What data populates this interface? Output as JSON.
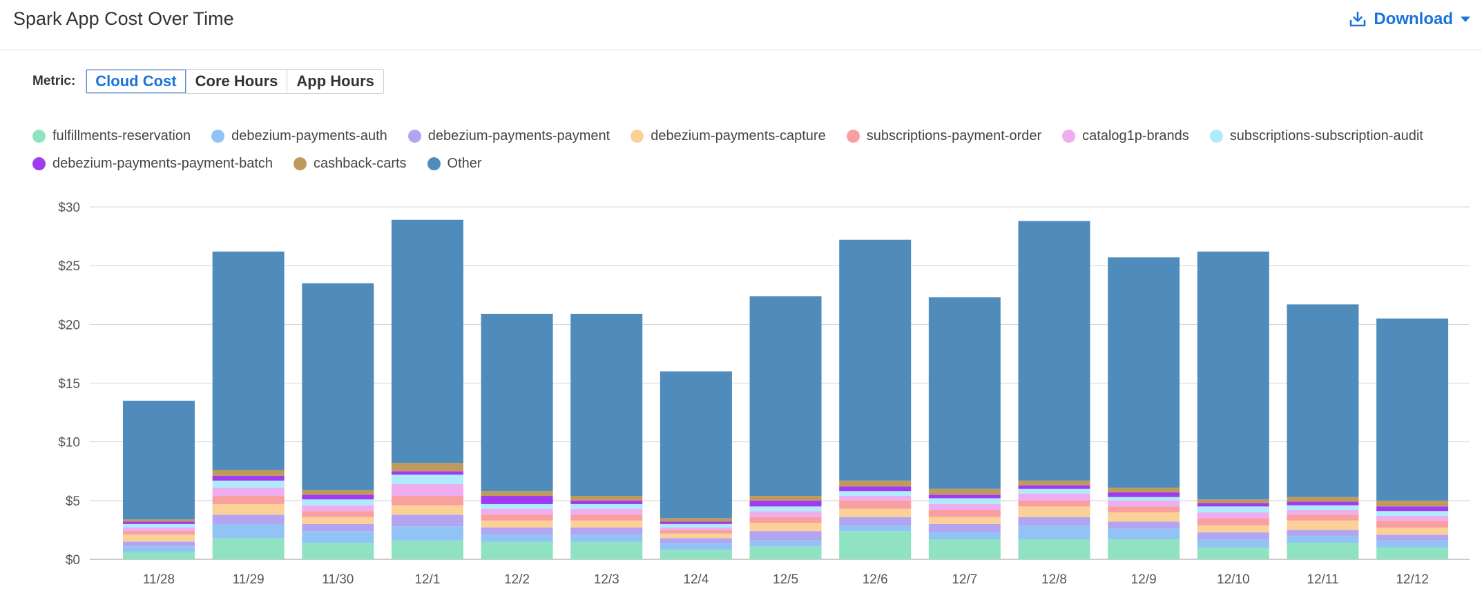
{
  "header": {
    "title": "Spark App Cost Over Time",
    "download_label": "Download"
  },
  "metric": {
    "label": "Metric:",
    "options": [
      "Cloud Cost",
      "Core Hours",
      "App Hours"
    ],
    "selected": "Cloud Cost"
  },
  "icons": {
    "download": "download-icon",
    "dropdown": "caret-down-icon"
  },
  "colors": {
    "accent": "#1a73d9"
  },
  "chart_data": {
    "type": "bar",
    "stacked": true,
    "title": "",
    "xlabel": "",
    "ylabel": "",
    "ylim": [
      0,
      30
    ],
    "y_ticks": [
      "$0",
      "$5",
      "$10",
      "$15",
      "$20",
      "$25",
      "$30"
    ],
    "grid": true,
    "legend_position": "top",
    "categories": [
      "11/28",
      "11/29",
      "11/30",
      "12/1",
      "12/2",
      "12/3",
      "12/4",
      "12/5",
      "12/6",
      "12/7",
      "12/8",
      "12/9",
      "12/10",
      "12/11",
      "12/12"
    ],
    "series": [
      {
        "name": "fulfillments-reservation",
        "color": "#8fe3c2",
        "values": [
          0.6,
          1.8,
          1.4,
          1.6,
          1.5,
          1.5,
          0.8,
          1.1,
          2.4,
          1.7,
          1.7,
          1.7,
          1.0,
          1.4,
          1.0
        ]
      },
      {
        "name": "debezium-payments-auth",
        "color": "#91c4f5",
        "values": [
          0.5,
          1.2,
          1.0,
          1.2,
          0.6,
          0.6,
          0.6,
          0.5,
          0.5,
          0.6,
          1.2,
          0.9,
          0.7,
          0.6,
          0.6
        ]
      },
      {
        "name": "debezium-payments-payment",
        "color": "#b3a4f2",
        "values": [
          0.4,
          0.8,
          0.6,
          1.0,
          0.6,
          0.6,
          0.4,
          0.8,
          0.7,
          0.7,
          0.7,
          0.6,
          0.6,
          0.5,
          0.5
        ]
      },
      {
        "name": "debezium-payments-capture",
        "color": "#fcd197",
        "values": [
          0.6,
          0.9,
          0.6,
          0.8,
          0.6,
          0.6,
          0.4,
          0.7,
          0.7,
          0.6,
          0.9,
          0.8,
          0.6,
          0.8,
          0.6
        ]
      },
      {
        "name": "subscriptions-payment-order",
        "color": "#f99f9f",
        "values": [
          0.3,
          0.7,
          0.5,
          0.8,
          0.5,
          0.5,
          0.3,
          0.5,
          0.7,
          0.6,
          0.5,
          0.5,
          0.6,
          0.5,
          0.6
        ]
      },
      {
        "name": "catalog1p-brands",
        "color": "#efacef",
        "values": [
          0.3,
          0.7,
          0.5,
          1.0,
          0.5,
          0.5,
          0.2,
          0.5,
          0.4,
          0.5,
          0.6,
          0.5,
          0.5,
          0.4,
          0.4
        ]
      },
      {
        "name": "subscriptions-subscription-audit",
        "color": "#aeecfc",
        "values": [
          0.3,
          0.6,
          0.5,
          0.8,
          0.4,
          0.4,
          0.3,
          0.4,
          0.4,
          0.5,
          0.4,
          0.3,
          0.5,
          0.4,
          0.4
        ]
      },
      {
        "name": "debezium-payments-payment-batch",
        "color": "#a13bf2",
        "values": [
          0.2,
          0.4,
          0.4,
          0.3,
          0.7,
          0.3,
          0.2,
          0.5,
          0.4,
          0.3,
          0.3,
          0.4,
          0.3,
          0.3,
          0.4
        ]
      },
      {
        "name": "cashback-carts",
        "color": "#bf9a5c",
        "values": [
          0.2,
          0.5,
          0.4,
          0.7,
          0.4,
          0.4,
          0.3,
          0.4,
          0.5,
          0.5,
          0.4,
          0.4,
          0.3,
          0.4,
          0.5
        ]
      },
      {
        "name": "Other",
        "color": "#4f8cbc",
        "values": [
          10.1,
          18.6,
          17.6,
          20.7,
          15.1,
          15.5,
          12.5,
          17.0,
          20.5,
          16.3,
          22.1,
          19.6,
          21.1,
          16.4,
          15.5
        ]
      }
    ]
  }
}
